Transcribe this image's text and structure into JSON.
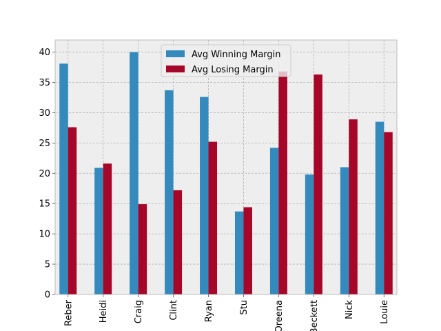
{
  "chart_data": {
    "type": "bar",
    "title": "",
    "xlabel": "",
    "ylabel": "",
    "categories": [
      "Reber",
      "Heidi",
      "Craig",
      "Clint",
      "Ryan",
      "Stu",
      "Oreena",
      "Beckett",
      "Nick",
      "Louie"
    ],
    "series": [
      {
        "name": "Avg Winning Margin",
        "color": "#348ABD",
        "values": [
          38.1,
          20.9,
          40.0,
          33.7,
          32.6,
          13.7,
          24.2,
          19.8,
          21.0,
          28.5
        ]
      },
      {
        "name": "Avg Losing Margin",
        "color": "#A60628",
        "values": [
          27.6,
          21.6,
          14.9,
          17.2,
          25.2,
          14.4,
          36.8,
          36.3,
          28.9,
          26.8
        ]
      }
    ],
    "ylim": [
      0,
      42
    ],
    "yticks": [
      0,
      5,
      10,
      15,
      20,
      25,
      30,
      35,
      40
    ],
    "grid": true,
    "legend_position": "top-center",
    "background_color": "#EEEEEE"
  }
}
